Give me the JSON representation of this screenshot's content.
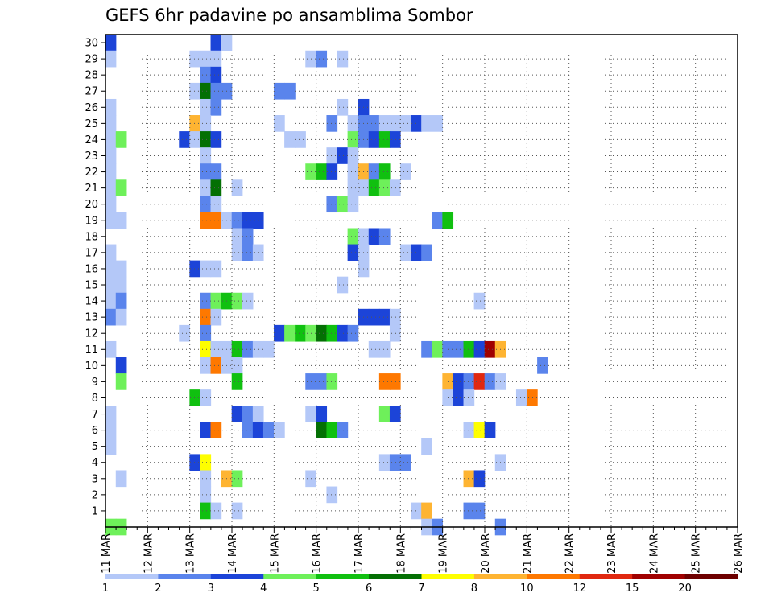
{
  "chart_data": {
    "type": "heatmap",
    "title": "GEFS 6hr padavine po ansamblima Sombor",
    "xlabel": "",
    "ylabel": "",
    "x_axis": {
      "start": "11 MAR",
      "end": "26 MAR",
      "step": "6 hours",
      "ticks": [
        "11 MAR",
        "12 MAR",
        "13 MAR",
        "14 MAR",
        "15 MAR",
        "16 MAR",
        "17 MAR",
        "18 MAR",
        "19 MAR",
        "20 MAR",
        "21 MAR",
        "22 MAR",
        "23 MAR",
        "24 MAR",
        "25 MAR",
        "26 MAR"
      ]
    },
    "y_axis": {
      "range": [
        1,
        30
      ],
      "ticks": [
        1,
        2,
        3,
        4,
        5,
        6,
        7,
        8,
        9,
        10,
        11,
        12,
        13,
        14,
        15,
        16,
        17,
        18,
        19,
        20,
        21,
        22,
        23,
        24,
        25,
        26,
        27,
        28,
        29,
        30
      ]
    },
    "grid": true,
    "colorbar": {
      "position": "bottom",
      "labels": [
        "1",
        "2",
        "3",
        "4",
        "5",
        "6",
        "7",
        "8",
        "10",
        "12",
        "15",
        "20"
      ],
      "colors": [
        "#b4c8f8",
        "#5a84ec",
        "#1c44d8",
        "#6ef05a",
        "#10c010",
        "#047004",
        "#fefe00",
        "#feb432",
        "#fe7800",
        "#e02810",
        "#a00000",
        "#6e0000"
      ]
    },
    "cells_note": "each cell: [member, 6-hour step from 11 MAR 00Z, colour class index 0-11]",
    "cells": [
      [
        30,
        0,
        2
      ],
      [
        30,
        10,
        2
      ],
      [
        30,
        11,
        0
      ],
      [
        29,
        0,
        0
      ],
      [
        29,
        8,
        0
      ],
      [
        29,
        9,
        0
      ],
      [
        29,
        10,
        0
      ],
      [
        29,
        19,
        0
      ],
      [
        29,
        20,
        1
      ],
      [
        29,
        22,
        0
      ],
      [
        28,
        9,
        1
      ],
      [
        28,
        10,
        2
      ],
      [
        27,
        8,
        0
      ],
      [
        27,
        9,
        5
      ],
      [
        27,
        10,
        1
      ],
      [
        27,
        11,
        1
      ],
      [
        27,
        16,
        1
      ],
      [
        27,
        17,
        1
      ],
      [
        26,
        0,
        0
      ],
      [
        26,
        9,
        0
      ],
      [
        26,
        10,
        1
      ],
      [
        26,
        22,
        0
      ],
      [
        26,
        24,
        2
      ],
      [
        25,
        0,
        0
      ],
      [
        25,
        8,
        7
      ],
      [
        25,
        9,
        0
      ],
      [
        25,
        16,
        0
      ],
      [
        25,
        21,
        1
      ],
      [
        25,
        23,
        0
      ],
      [
        25,
        24,
        1
      ],
      [
        25,
        25,
        1
      ],
      [
        25,
        26,
        0
      ],
      [
        25,
        27,
        0
      ],
      [
        25,
        28,
        0
      ],
      [
        25,
        29,
        2
      ],
      [
        25,
        30,
        0
      ],
      [
        25,
        31,
        0
      ],
      [
        24,
        0,
        0
      ],
      [
        24,
        1,
        3
      ],
      [
        24,
        7,
        2
      ],
      [
        24,
        8,
        0
      ],
      [
        24,
        9,
        5
      ],
      [
        24,
        10,
        2
      ],
      [
        24,
        17,
        0
      ],
      [
        24,
        18,
        0
      ],
      [
        24,
        23,
        3
      ],
      [
        24,
        24,
        1
      ],
      [
        24,
        25,
        2
      ],
      [
        24,
        26,
        4
      ],
      [
        24,
        27,
        2
      ],
      [
        23,
        0,
        0
      ],
      [
        23,
        9,
        0
      ],
      [
        23,
        21,
        0
      ],
      [
        23,
        22,
        2
      ],
      [
        23,
        23,
        0
      ],
      [
        22,
        0,
        0
      ],
      [
        22,
        9,
        1
      ],
      [
        22,
        10,
        1
      ],
      [
        22,
        19,
        3
      ],
      [
        22,
        20,
        4
      ],
      [
        22,
        21,
        2
      ],
      [
        22,
        23,
        0
      ],
      [
        22,
        24,
        7
      ],
      [
        22,
        25,
        1
      ],
      [
        22,
        26,
        4
      ],
      [
        22,
        28,
        0
      ],
      [
        21,
        0,
        0
      ],
      [
        21,
        1,
        3
      ],
      [
        21,
        9,
        0
      ],
      [
        21,
        10,
        5
      ],
      [
        21,
        12,
        0
      ],
      [
        21,
        23,
        0
      ],
      [
        21,
        24,
        0
      ],
      [
        21,
        25,
        4
      ],
      [
        21,
        26,
        3
      ],
      [
        21,
        27,
        0
      ],
      [
        20,
        0,
        0
      ],
      [
        20,
        9,
        1
      ],
      [
        20,
        10,
        0
      ],
      [
        20,
        21,
        1
      ],
      [
        20,
        22,
        3
      ],
      [
        20,
        23,
        0
      ],
      [
        19,
        0,
        0
      ],
      [
        19,
        1,
        0
      ],
      [
        19,
        9,
        8
      ],
      [
        19,
        10,
        8
      ],
      [
        19,
        11,
        0
      ],
      [
        19,
        12,
        1
      ],
      [
        19,
        13,
        2
      ],
      [
        19,
        14,
        2
      ],
      [
        19,
        31,
        1
      ],
      [
        19,
        32,
        4
      ],
      [
        18,
        12,
        0
      ],
      [
        18,
        13,
        1
      ],
      [
        18,
        23,
        3
      ],
      [
        18,
        24,
        0
      ],
      [
        18,
        25,
        2
      ],
      [
        18,
        26,
        1
      ],
      [
        17,
        0,
        0
      ],
      [
        17,
        12,
        0
      ],
      [
        17,
        13,
        1
      ],
      [
        17,
        14,
        0
      ],
      [
        17,
        23,
        2
      ],
      [
        17,
        24,
        0
      ],
      [
        17,
        28,
        0
      ],
      [
        17,
        29,
        2
      ],
      [
        17,
        30,
        1
      ],
      [
        16,
        0,
        0
      ],
      [
        16,
        1,
        0
      ],
      [
        16,
        8,
        2
      ],
      [
        16,
        9,
        0
      ],
      [
        16,
        10,
        0
      ],
      [
        16,
        24,
        0
      ],
      [
        15,
        0,
        0
      ],
      [
        15,
        1,
        0
      ],
      [
        15,
        22,
        0
      ],
      [
        14,
        0,
        0
      ],
      [
        14,
        1,
        1
      ],
      [
        14,
        9,
        1
      ],
      [
        14,
        10,
        3
      ],
      [
        14,
        11,
        4
      ],
      [
        14,
        12,
        3
      ],
      [
        14,
        13,
        0
      ],
      [
        14,
        35,
        0
      ],
      [
        13,
        0,
        1
      ],
      [
        13,
        1,
        0
      ],
      [
        13,
        9,
        8
      ],
      [
        13,
        10,
        0
      ],
      [
        13,
        24,
        2
      ],
      [
        13,
        25,
        2
      ],
      [
        13,
        26,
        2
      ],
      [
        13,
        27,
        0
      ],
      [
        12,
        7,
        0
      ],
      [
        12,
        9,
        1
      ],
      [
        12,
        16,
        2
      ],
      [
        12,
        17,
        3
      ],
      [
        12,
        18,
        4
      ],
      [
        12,
        19,
        3
      ],
      [
        12,
        20,
        5
      ],
      [
        12,
        21,
        4
      ],
      [
        12,
        22,
        2
      ],
      [
        12,
        23,
        1
      ],
      [
        12,
        27,
        0
      ],
      [
        11,
        0,
        0
      ],
      [
        11,
        9,
        6
      ],
      [
        11,
        10,
        0
      ],
      [
        11,
        11,
        0
      ],
      [
        11,
        12,
        4
      ],
      [
        11,
        13,
        1
      ],
      [
        11,
        14,
        0
      ],
      [
        11,
        15,
        0
      ],
      [
        11,
        25,
        0
      ],
      [
        11,
        26,
        0
      ],
      [
        11,
        30,
        1
      ],
      [
        11,
        31,
        3
      ],
      [
        11,
        32,
        1
      ],
      [
        11,
        33,
        1
      ],
      [
        11,
        34,
        4
      ],
      [
        11,
        35,
        2
      ],
      [
        11,
        36,
        10
      ],
      [
        11,
        37,
        7
      ],
      [
        10,
        1,
        2
      ],
      [
        10,
        9,
        0
      ],
      [
        10,
        10,
        8
      ],
      [
        10,
        11,
        0
      ],
      [
        10,
        12,
        0
      ],
      [
        10,
        41,
        1
      ],
      [
        9,
        1,
        3
      ],
      [
        9,
        12,
        4
      ],
      [
        9,
        19,
        1
      ],
      [
        9,
        20,
        1
      ],
      [
        9,
        21,
        3
      ],
      [
        9,
        26,
        8
      ],
      [
        9,
        27,
        8
      ],
      [
        9,
        32,
        7
      ],
      [
        9,
        33,
        2
      ],
      [
        9,
        34,
        1
      ],
      [
        9,
        35,
        9
      ],
      [
        9,
        36,
        1
      ],
      [
        9,
        37,
        0
      ],
      [
        8,
        8,
        4
      ],
      [
        8,
        9,
        0
      ],
      [
        8,
        32,
        0
      ],
      [
        8,
        33,
        2
      ],
      [
        8,
        34,
        0
      ],
      [
        8,
        39,
        0
      ],
      [
        8,
        40,
        8
      ],
      [
        7,
        0,
        0
      ],
      [
        7,
        12,
        2
      ],
      [
        7,
        13,
        1
      ],
      [
        7,
        14,
        0
      ],
      [
        7,
        19,
        0
      ],
      [
        7,
        20,
        2
      ],
      [
        7,
        26,
        3
      ],
      [
        7,
        27,
        2
      ],
      [
        6,
        0,
        0
      ],
      [
        6,
        9,
        2
      ],
      [
        6,
        10,
        8
      ],
      [
        6,
        13,
        1
      ],
      [
        6,
        14,
        2
      ],
      [
        6,
        15,
        1
      ],
      [
        6,
        16,
        0
      ],
      [
        6,
        20,
        5
      ],
      [
        6,
        21,
        4
      ],
      [
        6,
        22,
        1
      ],
      [
        6,
        34,
        0
      ],
      [
        6,
        35,
        6
      ],
      [
        6,
        36,
        2
      ],
      [
        5,
        0,
        0
      ],
      [
        5,
        30,
        0
      ],
      [
        4,
        8,
        2
      ],
      [
        4,
        9,
        6
      ],
      [
        4,
        26,
        0
      ],
      [
        4,
        27,
        1
      ],
      [
        4,
        28,
        1
      ],
      [
        4,
        37,
        0
      ],
      [
        3,
        1,
        0
      ],
      [
        3,
        9,
        0
      ],
      [
        3,
        11,
        7
      ],
      [
        3,
        12,
        3
      ],
      [
        3,
        19,
        0
      ],
      [
        3,
        34,
        7
      ],
      [
        3,
        35,
        2
      ],
      [
        2,
        9,
        0
      ],
      [
        2,
        21,
        0
      ],
      [
        1,
        9,
        4
      ],
      [
        1,
        10,
        0
      ],
      [
        1,
        12,
        0
      ],
      [
        1,
        29,
        0
      ],
      [
        1,
        30,
        7
      ],
      [
        1,
        34,
        1
      ],
      [
        1,
        35,
        1
      ],
      [
        0,
        0,
        3
      ],
      [
        0,
        1,
        3
      ],
      [
        0,
        30,
        0
      ],
      [
        0,
        31,
        1
      ],
      [
        0,
        37,
        1
      ]
    ]
  }
}
